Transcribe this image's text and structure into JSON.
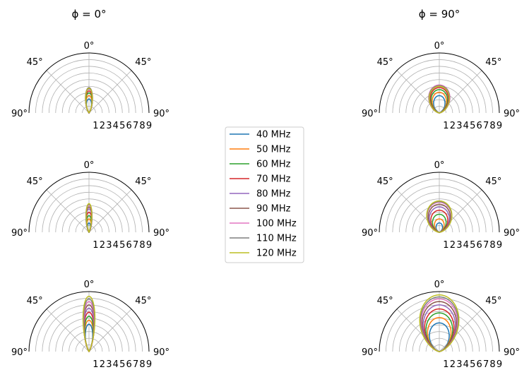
{
  "figure": {
    "column_titles": [
      "ϕ = 0°",
      "ϕ = 90°"
    ]
  },
  "chart_data": {
    "type": "polar-line",
    "theta_range_deg": [
      -90,
      90
    ],
    "theta_zero": "top",
    "angle_tick_labels": [
      "90°",
      "45°",
      "0°",
      "45°",
      "90°"
    ],
    "r_range": [
      0,
      9
    ],
    "r_ticks": [
      1,
      2,
      3,
      4,
      5,
      6,
      7,
      8,
      9
    ],
    "r_tick_labels": [
      "1",
      "2",
      "3",
      "4",
      "5",
      "6",
      "7",
      "8",
      "9"
    ],
    "grid": true,
    "legend": {
      "placement": "center",
      "entries": [
        "40 MHz",
        "50 MHz",
        "60 MHz",
        "70 MHz",
        "80 MHz",
        "90 MHz",
        "100 MHz",
        "110 MHz",
        "120 MHz"
      ]
    },
    "series": [
      {
        "name": "40 MHz",
        "color": "#1f77b4"
      },
      {
        "name": "50 MHz",
        "color": "#ff7f0e"
      },
      {
        "name": "60 MHz",
        "color": "#2ca02c"
      },
      {
        "name": "70 MHz",
        "color": "#d62728"
      },
      {
        "name": "80 MHz",
        "color": "#9467bd"
      },
      {
        "name": "90 MHz",
        "color": "#8c564b"
      },
      {
        "name": "100 MHz",
        "color": "#e377c2"
      },
      {
        "name": "110 MHz",
        "color": "#7f7f7f"
      },
      {
        "name": "120 MHz",
        "color": "#bcbd22"
      }
    ],
    "panels": [
      {
        "column": 0,
        "row": 0,
        "peaks": [
          2.1,
          2.6,
          3.0,
          3.3,
          3.6,
          3.7,
          3.8,
          3.8,
          3.7
        ],
        "half_width_deg": [
          20,
          19,
          18,
          17,
          16,
          16,
          15,
          15,
          15
        ]
      },
      {
        "column": 0,
        "row": 1,
        "peaks": [
          1.4,
          2.0,
          2.5,
          3.0,
          3.5,
          3.8,
          4.1,
          4.2,
          4.3
        ],
        "half_width_deg": [
          18,
          17,
          16,
          15,
          14,
          13,
          12,
          12,
          11
        ]
      },
      {
        "column": 0,
        "row": 2,
        "peaks": [
          4.1,
          4.7,
          5.3,
          5.9,
          6.5,
          7.0,
          7.5,
          7.9,
          8.3
        ],
        "half_width_deg": [
          15,
          15,
          14,
          14,
          13,
          13,
          12,
          12,
          12
        ]
      },
      {
        "column": 1,
        "row": 0,
        "peaks": [
          2.6,
          3.1,
          3.5,
          3.8,
          4.0,
          4.1,
          4.2,
          4.1,
          4.0
        ],
        "half_width_deg": [
          38,
          40,
          41,
          42,
          43,
          44,
          44,
          44,
          44
        ]
      },
      {
        "column": 1,
        "row": 1,
        "peaks": [
          1.4,
          2.0,
          2.7,
          3.3,
          3.8,
          4.2,
          4.5,
          4.6,
          4.7
        ],
        "half_width_deg": [
          40,
          42,
          44,
          45,
          46,
          46,
          47,
          47,
          47
        ]
      },
      {
        "column": 1,
        "row": 2,
        "peaks": [
          4.3,
          5.1,
          5.8,
          6.4,
          7.0,
          7.5,
          7.9,
          8.2,
          8.5
        ],
        "half_width_deg": [
          40,
          40,
          40,
          40,
          40,
          40,
          40,
          40,
          40
        ]
      }
    ]
  }
}
